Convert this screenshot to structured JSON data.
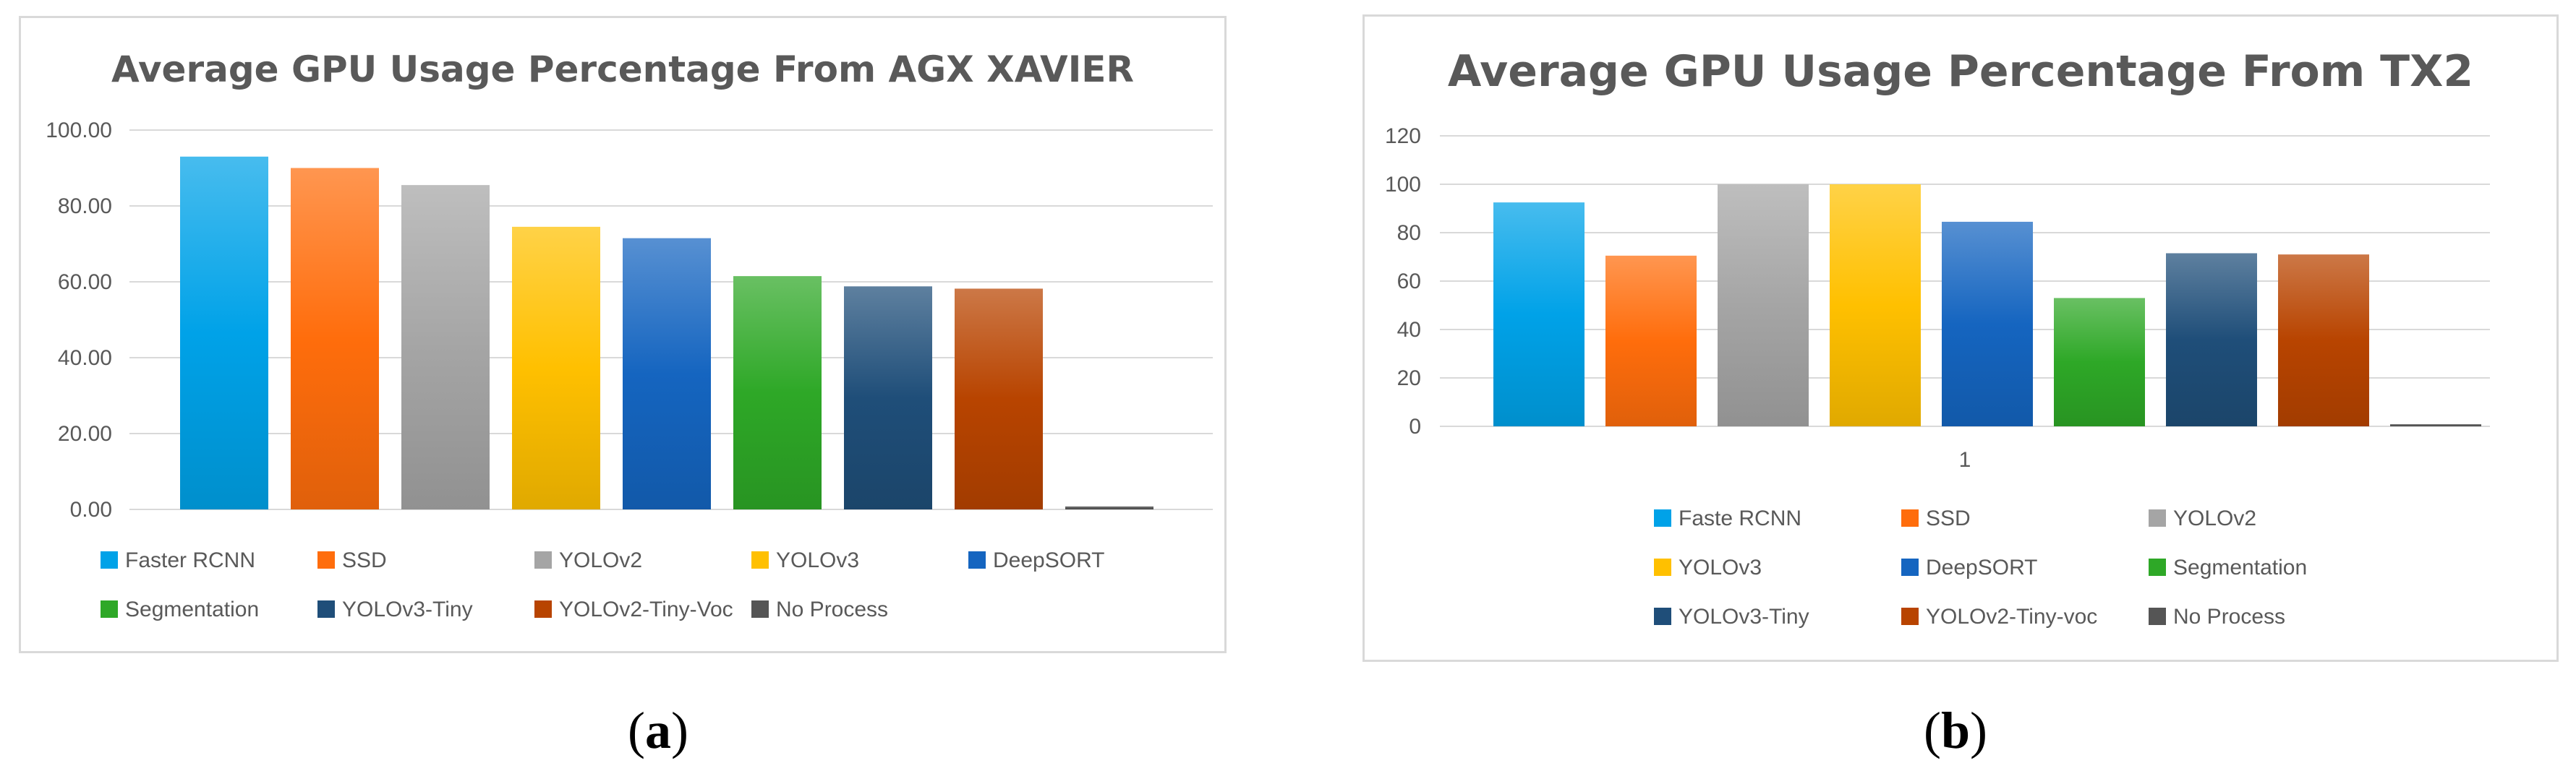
{
  "captions": {
    "a_open": "(",
    "a_letter": "a",
    "a_close": ")",
    "b_open": "(",
    "b_letter": "b",
    "b_close": ")"
  },
  "colors": {
    "grid": "#d9d9d9",
    "axis_text": "#595959",
    "title_text": "#595959"
  },
  "chart_data": [
    {
      "type": "bar",
      "title": "Average GPU Usage Percentage From AGX XAVIER",
      "xlabel": "",
      "ylabel": "",
      "ylim": [
        0,
        100
      ],
      "yticks": [
        "0.00",
        "20.00",
        "40.00",
        "60.00",
        "80.00",
        "100.00"
      ],
      "xticks": [],
      "grid": true,
      "legend_position": "bottom",
      "categories": [
        "Faster RCNN",
        "SSD",
        "YOLOv2",
        "YOLOv3",
        "DeepSORT",
        "Segmentation",
        "YOLOv3-Tiny",
        "YOLOv2-Tiny-Voc",
        "No Process"
      ],
      "values": [
        93,
        90,
        85.5,
        74.5,
        71.5,
        61.5,
        58.8,
        58.2,
        0.8
      ],
      "colors": [
        "#00a2e8",
        "#ff6d0c",
        "#a5a5a5",
        "#ffc000",
        "#1565c0",
        "#2ea827",
        "#1f4e79",
        "#b84400",
        "#555555"
      ]
    },
    {
      "type": "bar",
      "title": "Average GPU Usage Percentage From TX2",
      "xlabel": "",
      "ylabel": "",
      "ylim": [
        0,
        120
      ],
      "yticks": [
        "0",
        "20",
        "40",
        "60",
        "80",
        "100",
        "120"
      ],
      "xticks": [
        "1"
      ],
      "grid": true,
      "legend_position": "bottom",
      "categories": [
        "Faste RCNN",
        "SSD",
        "YOLOv2",
        "YOLOv3",
        "DeepSORT",
        "Segmentation",
        "YOLOv3-Tiny",
        "YOLOv2-Tiny-voc",
        "No Process"
      ],
      "values": [
        92.5,
        70.5,
        100,
        100,
        84.5,
        53,
        71.5,
        71,
        0.5
      ],
      "colors": [
        "#00a2e8",
        "#ff6d0c",
        "#a5a5a5",
        "#ffc000",
        "#1565c0",
        "#2ea827",
        "#1f4e79",
        "#b84400",
        "#555555"
      ]
    }
  ]
}
